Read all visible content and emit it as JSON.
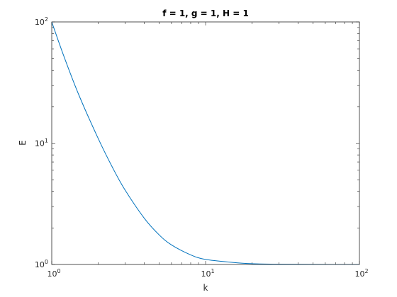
{
  "chart_data": {
    "type": "line",
    "title": "f = 1, g = 1, H = 1",
    "xlabel": "k",
    "ylabel": "E",
    "xscale": "log",
    "yscale": "log",
    "xlim": [
      1,
      100
    ],
    "ylim": [
      1,
      100
    ],
    "grid": false,
    "legend": "none",
    "line_color": "#0072BD",
    "x_ticks": [
      {
        "base": "10",
        "exp": "0",
        "value": 1
      },
      {
        "base": "10",
        "exp": "1",
        "value": 10
      },
      {
        "base": "10",
        "exp": "2",
        "value": 100
      }
    ],
    "y_ticks": [
      {
        "base": "10",
        "exp": "0",
        "value": 1
      },
      {
        "base": "10",
        "exp": "1",
        "value": 10
      },
      {
        "base": "10",
        "exp": "2",
        "value": 100
      }
    ],
    "series": [
      {
        "x": [
          1,
          1.2,
          1.5,
          2,
          2.5,
          3,
          4,
          5,
          6,
          8,
          10,
          15,
          20,
          30,
          50,
          100
        ],
        "y": [
          100,
          52,
          25,
          11,
          6.2,
          4.1,
          2.4,
          1.75,
          1.45,
          1.2,
          1.1,
          1.04,
          1.015,
          1.005,
          1.001,
          1.0
        ]
      }
    ]
  }
}
